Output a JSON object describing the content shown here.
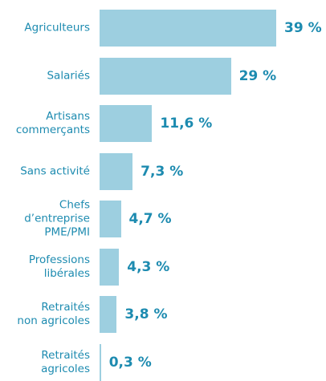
{
  "chart_data": {
    "type": "bar",
    "orientation": "horizontal",
    "categories": [
      "Agriculteurs",
      "Salariés",
      "Artisans\ncommerçants",
      "Sans activité",
      "Chefs\nd’entreprise\nPME/PMI",
      "Professions\nlibérales",
      "Retraités\nnon agricoles",
      "Retraités\nagricoles"
    ],
    "values": [
      39,
      29,
      11.6,
      7.3,
      4.7,
      4.3,
      3.8,
      0.3
    ],
    "value_labels": [
      "39 %",
      "29 %",
      "11,6 %",
      "7,3 %",
      "4,7 %",
      "4,3 %",
      "3,8 %",
      "0,3 %"
    ],
    "color": "#9dcfe0"
  }
}
